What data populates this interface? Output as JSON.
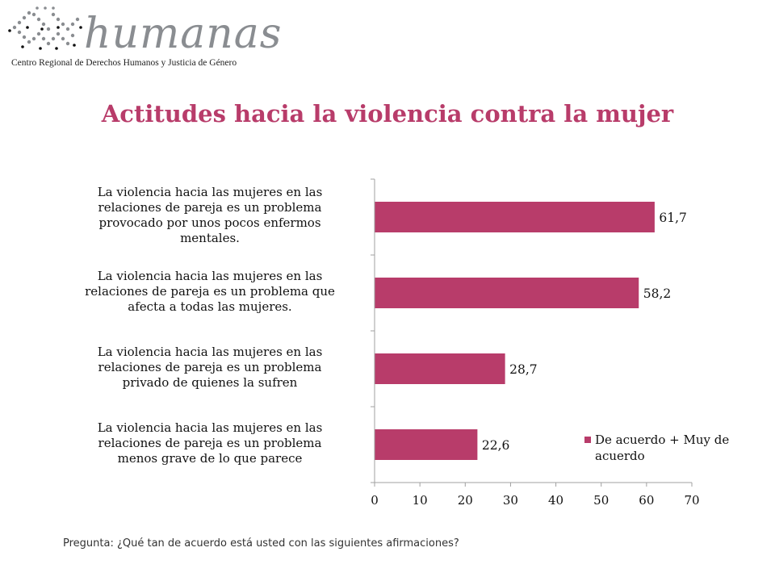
{
  "logo": {
    "name": "humanas",
    "subtitle": "Centro Regional de Derechos Humanos y Justicia de Género"
  },
  "title": "Actitudes hacia la violencia contra la mujer",
  "footnote": "Pregunta: ¿Qué tan de acuerdo está usted con las siguientes afirmaciones?",
  "colors": {
    "bar": "#b83c6a",
    "title": "#b83c6a",
    "axis": "#a0a0a0"
  },
  "chart_data": {
    "type": "bar",
    "orientation": "horizontal",
    "categories": [
      "La violencia hacia las mujeres en las relaciones de pareja es un problema provocado por unos pocos enfermos mentales.",
      "La violencia hacia las mujeres en las relaciones de pareja es un problema que afecta a todas las mujeres.",
      "La violencia hacia las mujeres en las relaciones de pareja es un problema privado de quienes la sufren",
      "La violencia hacia las mujeres en las relaciones de pareja es un problema menos grave de lo que parece"
    ],
    "category_lines": [
      [
        "La violencia hacia las mujeres en las",
        "relaciones de pareja es un problema",
        "provocado por unos pocos enfermos",
        "mentales."
      ],
      [
        "La violencia hacia las mujeres en las",
        "relaciones de pareja es un problema que",
        "afecta a todas las mujeres."
      ],
      [
        "La violencia hacia las mujeres en las",
        "relaciones de pareja es un problema",
        "privado de quienes la sufren"
      ],
      [
        "La violencia hacia las mujeres en las",
        "relaciones de pareja es un problema",
        "menos grave de lo que parece"
      ]
    ],
    "series": [
      {
        "name": "De acuerdo + Muy de acuerdo",
        "values": [
          61.7,
          58.2,
          28.7,
          22.6
        ]
      }
    ],
    "value_labels": [
      "61,7",
      "58,2",
      "28,7",
      "22,6"
    ],
    "xlim": [
      0,
      70
    ],
    "xticks": [
      0,
      10,
      20,
      30,
      40,
      50,
      60,
      70
    ],
    "legend_position": "bottom-right",
    "grid": false
  }
}
